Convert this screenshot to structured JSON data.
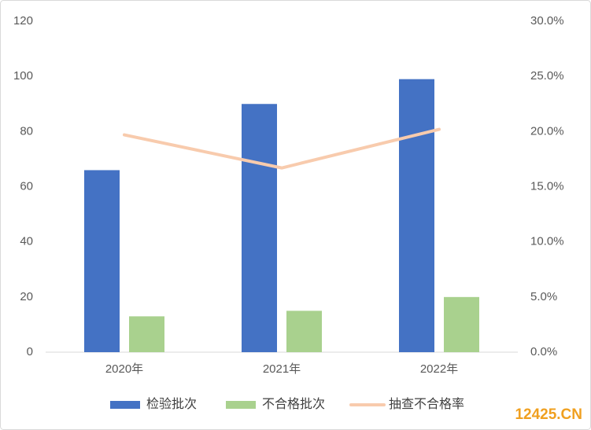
{
  "chart_data": {
    "type": "bar",
    "categories": [
      "2020年",
      "2021年",
      "2022年"
    ],
    "series": [
      {
        "name": "检验批次",
        "color": "#4472c4",
        "type": "bar",
        "values": [
          66,
          90,
          99
        ]
      },
      {
        "name": "不合格批次",
        "color": "#a9d18e",
        "type": "bar",
        "values": [
          13,
          15,
          20
        ]
      },
      {
        "name": "抽查不合格率",
        "color": "#f8cbad",
        "type": "line",
        "axis": "y2",
        "values": [
          19.7,
          16.7,
          20.2
        ]
      }
    ],
    "ylim": [
      0,
      120
    ],
    "yticks": [
      0,
      20,
      40,
      60,
      80,
      100,
      120
    ],
    "y2lim": [
      0,
      30
    ],
    "y2ticks": [
      {
        "value": 0,
        "label": "0.0%"
      },
      {
        "value": 5,
        "label": "5.0%"
      },
      {
        "value": 10,
        "label": "10.0%"
      },
      {
        "value": 15,
        "label": "15.0%"
      },
      {
        "value": 20,
        "label": "20.0%"
      },
      {
        "value": 25,
        "label": "25.0%"
      },
      {
        "value": 30,
        "label": "30.0%"
      }
    ],
    "grid": false,
    "legend": "bottom",
    "watermark": "12425.CN"
  }
}
